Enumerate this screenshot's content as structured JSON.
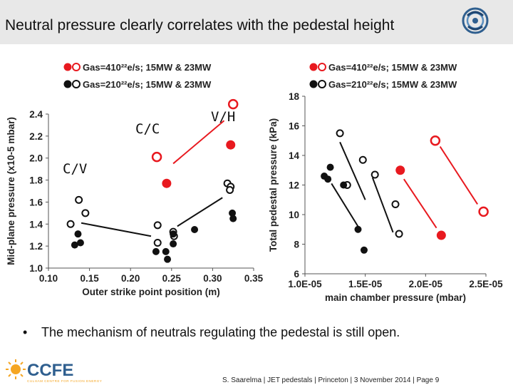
{
  "title": "Neutral pressure clearly correlates with the pedestal height",
  "bullet": "The mechanism of neutrals regulating the pedestal is still open.",
  "footer": "S. Saarelma | JET pedestals | Princeton | 3 November 2014 | Page 9",
  "logo": {
    "name": "CCFE",
    "tagline": "CULHAM CENTRE FOR FUSION ENERGY",
    "jet_icon": "jet-logo-icon"
  },
  "colors": {
    "red": "#e8191f",
    "black": "#111111",
    "title_bg": "#e8e8e8",
    "logo_blue": "#2f5f8f",
    "logo_orange": "#f5a623"
  },
  "chart_data": [
    {
      "type": "scatter",
      "title": "",
      "xlabel": "Outer strike point position (m)",
      "ylabel": "Mid-plane pressure (x10-5 mbar)",
      "xlim": [
        0.1,
        0.35
      ],
      "ylim": [
        1.0,
        2.4
      ],
      "xticks": [
        "0.10",
        "0.15",
        "0.20",
        "0.25",
        "0.30",
        "0.35"
      ],
      "yticks": [
        "1.0",
        "1.2",
        "1.4",
        "1.6",
        "1.8",
        "2.0",
        "2.2",
        "2.4"
      ],
      "legend": [
        {
          "label": "Gas=410²²e/s; 15MW & 23MW",
          "color": "#e8191f"
        },
        {
          "label": "Gas=210²²e/s; 15MW & 23MW",
          "color": "#111111"
        }
      ],
      "annotations": [
        "C/C",
        "C/V",
        "V/H"
      ],
      "series": [
        {
          "name": "Gas=410²²e/s; 15MW",
          "color": "red",
          "filled": false,
          "x": [
            0.232,
            0.325
          ],
          "y": [
            2.01,
            2.49
          ]
        },
        {
          "name": "Gas=410²²e/s; 23MW",
          "color": "red",
          "filled": true,
          "x": [
            0.244,
            0.322
          ],
          "y": [
            1.77,
            2.12
          ]
        },
        {
          "name": "Gas=210²²e/s; 15MW",
          "color": "black",
          "filled": false,
          "x": [
            0.127,
            0.137,
            0.145,
            0.233,
            0.233,
            0.252,
            0.253,
            0.318,
            0.322,
            0.321
          ],
          "y": [
            1.4,
            1.62,
            1.5,
            1.39,
            1.23,
            1.33,
            1.29,
            1.77,
            1.74,
            1.71
          ]
        },
        {
          "name": "Gas=210²²e/s; 23MW",
          "color": "black",
          "filled": true,
          "x": [
            0.132,
            0.136,
            0.139,
            0.231,
            0.243,
            0.245,
            0.252,
            0.252,
            0.278,
            0.324,
            0.325
          ],
          "y": [
            1.21,
            1.31,
            1.23,
            1.15,
            1.15,
            1.08,
            1.31,
            1.22,
            1.35,
            1.5,
            1.45
          ]
        }
      ]
    },
    {
      "type": "scatter",
      "title": "",
      "xlabel": "main chamber pressure (mbar)",
      "ylabel": "Total pedestal pressure (kPa)",
      "xlim": [
        1e-05,
        2.5e-05
      ],
      "ylim": [
        6,
        18
      ],
      "xticks": [
        "1.0E-05",
        "1.5E-05",
        "2.0E-05",
        "2.5E-05"
      ],
      "yticks": [
        "6",
        "8",
        "10",
        "12",
        "14",
        "16",
        "18"
      ],
      "legend": [
        {
          "label": "Gas=410²²e/s; 15MW & 23MW",
          "color": "#e8191f"
        },
        {
          "label": "Gas=210²²e/s; 15MW & 23MW",
          "color": "#111111"
        }
      ],
      "series": [
        {
          "name": "Gas=410²²e/s; 15MW",
          "color": "red",
          "filled": false,
          "x": [
            2.08e-05,
            2.48e-05
          ],
          "y": [
            15.0,
            10.2
          ]
        },
        {
          "name": "Gas=410²²e/s; 23MW",
          "color": "red",
          "filled": true,
          "x": [
            1.79e-05,
            2.13e-05
          ],
          "y": [
            13.0,
            8.6
          ]
        },
        {
          "name": "Gas=210²²e/s; 15MW",
          "color": "black",
          "filled": false,
          "x": [
            1.29e-05,
            1.48e-05,
            1.58e-05,
            1.35e-05,
            1.75e-05,
            1.78e-05
          ],
          "y": [
            15.5,
            13.7,
            12.7,
            12.0,
            10.7,
            8.7
          ]
        },
        {
          "name": "Gas=210²²e/s; 23MW",
          "color": "black",
          "filled": true,
          "x": [
            1.16e-05,
            1.19e-05,
            1.21e-05,
            1.32e-05,
            1.44e-05,
            1.49e-05
          ],
          "y": [
            12.6,
            12.4,
            13.2,
            12.0,
            9.0,
            7.6
          ]
        }
      ]
    }
  ]
}
